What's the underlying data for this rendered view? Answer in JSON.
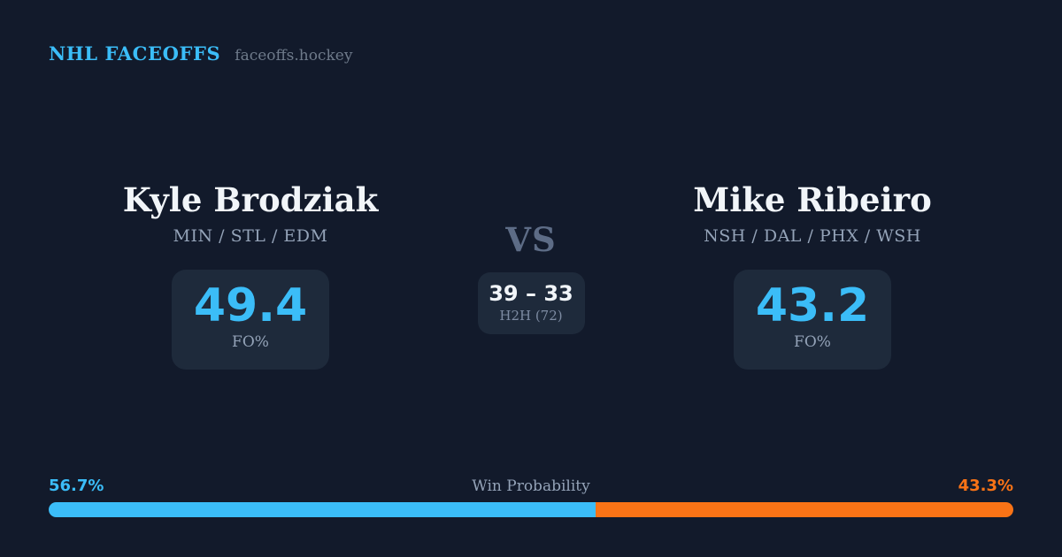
{
  "header": {
    "title": "NHL FACEOFFS",
    "site": "faceoffs.hockey"
  },
  "players": {
    "left": {
      "name": "Kyle Brodziak",
      "teams": "MIN / STL / EDM",
      "fo_value": "49.4",
      "fo_label": "FO%"
    },
    "right": {
      "name": "Mike Ribeiro",
      "teams": "NSH / DAL / PHX / WSH",
      "fo_value": "43.2",
      "fo_label": "FO%"
    }
  },
  "center": {
    "vs_label": "VS",
    "h2h_score": "39 – 33",
    "h2h_label": "H2H (72)"
  },
  "win_probability": {
    "title": "Win Probability",
    "left_label": "56.7%",
    "right_label": "43.3%",
    "left_pct": 56.7,
    "right_pct": 43.3
  },
  "colors": {
    "bg": "#121a2b",
    "card_bg": "#1e2a3b",
    "accent_blue": "#3bbdf8",
    "accent_orange": "#f97316",
    "text_white": "#f1f5f9",
    "text_muted": "#94a3b8",
    "text_dim": "#5d6c86",
    "text_domain": "#6e7a8a"
  }
}
